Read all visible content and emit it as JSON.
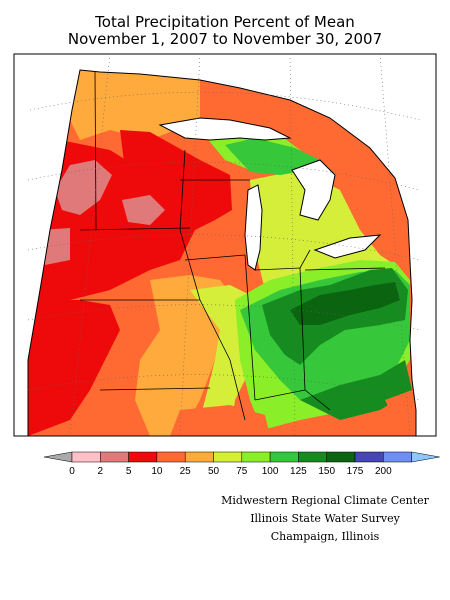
{
  "title": {
    "line1": "Total Precipitation Percent of Mean",
    "line2": "November 1, 2007 to November 30, 2007"
  },
  "legend": {
    "labels": [
      "0",
      "2",
      "5",
      "10",
      "25",
      "50",
      "75",
      "100",
      "125",
      "150",
      "175",
      "200"
    ],
    "colors": [
      "#aaaaaa",
      "#ffc0c8",
      "#e07a7a",
      "#ee0a0a",
      "#ff6a32",
      "#ffaa3c",
      "#d4ee3a",
      "#8aee28",
      "#36c83a",
      "#168c20",
      "#0a6410",
      "#4646b4",
      "#6e8ef0",
      "#8cc8ff"
    ]
  },
  "credits": {
    "line1": "Midwestern Regional Climate Center",
    "line2": "Illinois State Water Survey",
    "line3": "Champaign, Illinois"
  }
}
